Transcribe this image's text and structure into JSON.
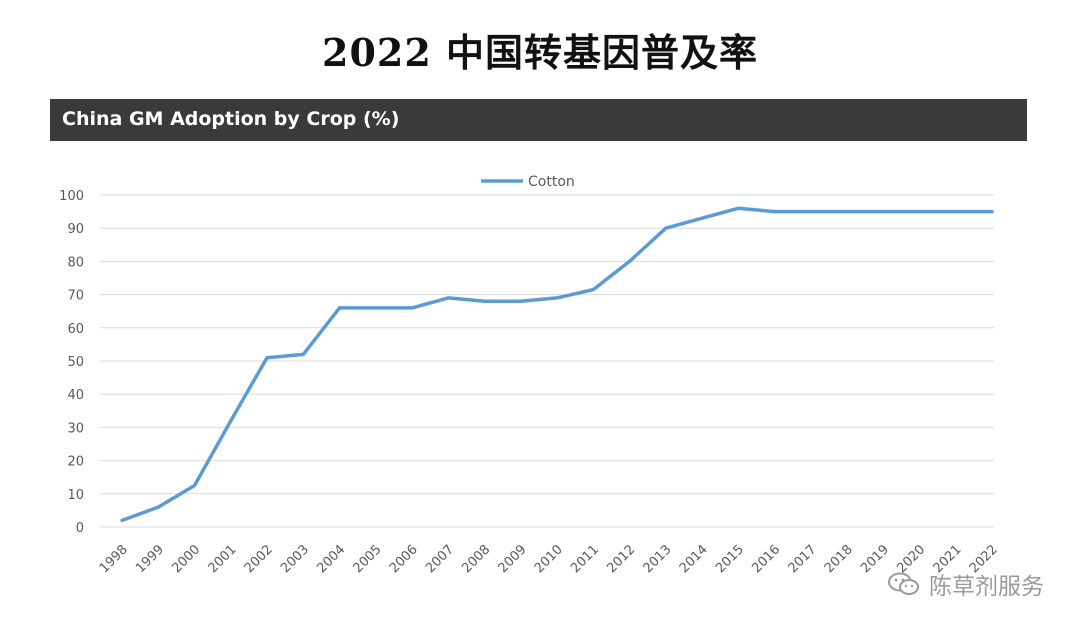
{
  "page": {
    "title": "2022 中国转基因普及率",
    "watermark": "陈草剂服务",
    "watermark_icon": "wechat-icon"
  },
  "chart_data": {
    "type": "line",
    "title": "China GM Adoption by Crop (%)",
    "xlabel": "",
    "ylabel": "",
    "x": [
      "1998",
      "1999",
      "2000",
      "2001",
      "2002",
      "2003",
      "2004",
      "2005",
      "2006",
      "2007",
      "2008",
      "2009",
      "2010",
      "2011",
      "2012",
      "2013",
      "2014",
      "2015",
      "2016",
      "2017",
      "2018",
      "2019",
      "2020",
      "2021",
      "2022"
    ],
    "series": [
      {
        "name": "Cotton",
        "color": "#5b9bd5",
        "values": [
          2,
          6,
          12.5,
          32,
          51,
          52,
          66,
          66,
          66,
          69,
          68,
          68,
          69,
          71.5,
          80,
          90,
          93,
          96,
          95,
          95,
          95,
          95,
          95,
          95,
          95
        ]
      }
    ],
    "ylim": [
      0,
      100
    ],
    "yticks": [
      0,
      10,
      20,
      30,
      40,
      50,
      60,
      70,
      80,
      90,
      100
    ],
    "grid": true,
    "legend_position": "top-center"
  }
}
